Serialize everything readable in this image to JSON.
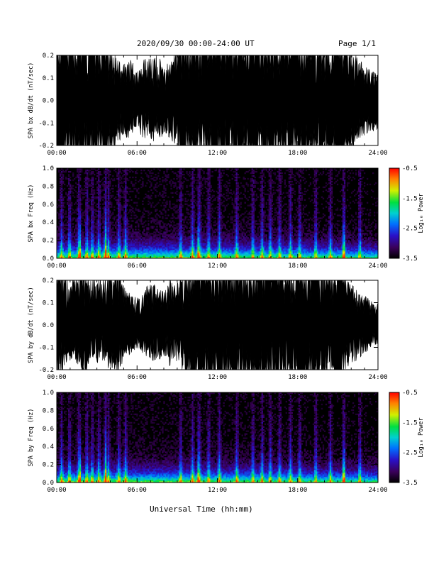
{
  "header": {
    "title": "2020/09/30  00:00-24:00 UT",
    "page": "Page 1/1"
  },
  "xaxis": {
    "label": "Universal Time (hh:mm)",
    "ticks": [
      "00:00",
      "06:00",
      "12:00",
      "18:00",
      "24:00"
    ],
    "range_hours": [
      0,
      24
    ]
  },
  "chart_data": [
    {
      "type": "area",
      "id": "bx-wave",
      "ylabel": "SPA bx dB/dt (nT/sec)",
      "ylim": [
        -0.2,
        0.2
      ],
      "yticks": [
        "-0.2",
        "-0.1",
        "0.0",
        "0.1",
        "0.2"
      ],
      "x_hours": [
        0,
        0.5,
        1,
        1.5,
        2,
        2.5,
        3,
        3.5,
        4,
        4.5,
        5,
        5.5,
        6,
        6.5,
        7,
        7.5,
        8,
        8.5,
        9,
        9.5,
        10,
        10.5,
        11,
        11.5,
        12,
        12.5,
        13,
        13.5,
        14,
        14.5,
        15,
        15.5,
        16,
        16.5,
        17,
        17.5,
        18,
        18.5,
        19,
        19.5,
        20,
        20.5,
        21,
        21.5,
        22,
        22.5,
        23,
        23.5,
        24
      ],
      "upper": [
        0.2,
        0.2,
        0.17,
        0.2,
        0.2,
        0.2,
        0.2,
        0.2,
        0.17,
        0.12,
        0.1,
        0.12,
        0.08,
        0.12,
        0.12,
        0.13,
        0.1,
        0.11,
        0.16,
        0.2,
        0.2,
        0.2,
        0.2,
        0.2,
        0.2,
        0.2,
        0.2,
        0.2,
        0.2,
        0.2,
        0.2,
        0.2,
        0.2,
        0.2,
        0.2,
        0.2,
        0.2,
        0.2,
        0.2,
        0.17,
        0.18,
        0.17,
        0.2,
        0.18,
        0.14,
        0.12,
        0.1,
        0.08,
        0.08
      ],
      "lower": [
        -0.2,
        -0.2,
        -0.17,
        -0.2,
        -0.2,
        -0.2,
        -0.2,
        -0.2,
        -0.16,
        -0.12,
        -0.1,
        -0.11,
        -0.07,
        -0.12,
        -0.12,
        -0.11,
        -0.1,
        -0.11,
        -0.16,
        -0.2,
        -0.2,
        -0.2,
        -0.2,
        -0.2,
        -0.2,
        -0.2,
        -0.2,
        -0.2,
        -0.2,
        -0.2,
        -0.2,
        -0.2,
        -0.2,
        -0.2,
        -0.2,
        -0.2,
        -0.2,
        -0.2,
        -0.2,
        -0.17,
        -0.18,
        -0.16,
        -0.19,
        -0.17,
        -0.14,
        -0.12,
        -0.1,
        -0.09,
        -0.08
      ]
    },
    {
      "type": "heatmap",
      "id": "bx-spectrogram",
      "ylabel": "SPA bx Freq (Hz)",
      "ylim": [
        0,
        1.0
      ],
      "yticks": [
        "0.0",
        "0.2",
        "0.4",
        "0.6",
        "0.8",
        "1.0"
      ],
      "colorbar": {
        "label": "Log₁₀ Power",
        "range": [
          -3.5,
          -0.5
        ],
        "ticks": [
          "-0.5",
          "-1.5",
          "-2.5",
          "-3.5"
        ]
      },
      "burst_hours": [
        0.3,
        0.9,
        1.6,
        2.2,
        2.6,
        3.1,
        3.6,
        3.8,
        4.6,
        5.1,
        9.2,
        10.1,
        10.6,
        11.3,
        12.1,
        13.4,
        14.6,
        15.3,
        15.9,
        16.6,
        17.4,
        18.1,
        19.3,
        20.4,
        21.4,
        22.6
      ],
      "hot_hours": [
        1.7,
        3.6,
        10.5,
        21.4
      ]
    },
    {
      "type": "area",
      "id": "by-wave",
      "ylabel": "SPA by dB/dt (nT/sec)",
      "ylim": [
        -0.2,
        0.2
      ],
      "yticks": [
        "-0.2",
        "-0.1",
        "0.0",
        "0.1",
        "0.2"
      ],
      "x_hours": [
        0,
        0.5,
        1,
        1.5,
        2,
        2.5,
        3,
        3.5,
        4,
        4.5,
        5,
        5.5,
        6,
        6.5,
        7,
        7.5,
        8,
        8.5,
        9,
        9.5,
        10,
        10.5,
        11,
        11.5,
        12,
        12.5,
        13,
        13.5,
        14,
        14.5,
        15,
        15.5,
        16,
        16.5,
        17,
        17.5,
        18,
        18.5,
        19,
        19.5,
        20,
        20.5,
        21,
        21.5,
        22,
        22.5,
        23,
        23.5,
        24
      ],
      "upper": [
        0.2,
        0.17,
        0.12,
        0.15,
        0.2,
        0.13,
        0.15,
        0.13,
        0.16,
        0.18,
        0.12,
        0.09,
        0.08,
        0.1,
        0.12,
        0.11,
        0.1,
        0.13,
        0.12,
        0.15,
        0.2,
        0.2,
        0.2,
        0.2,
        0.2,
        0.2,
        0.2,
        0.2,
        0.2,
        0.2,
        0.2,
        0.2,
        0.2,
        0.2,
        0.2,
        0.18,
        0.2,
        0.2,
        0.18,
        0.2,
        0.2,
        0.17,
        0.2,
        0.15,
        0.12,
        0.1,
        0.09,
        0.07,
        0.06
      ],
      "lower": [
        -0.2,
        -0.12,
        -0.1,
        -0.12,
        -0.17,
        -0.1,
        -0.12,
        -0.1,
        -0.13,
        -0.15,
        -0.1,
        -0.08,
        -0.07,
        -0.08,
        -0.1,
        -0.1,
        -0.09,
        -0.12,
        -0.11,
        -0.14,
        -0.2,
        -0.2,
        -0.2,
        -0.2,
        -0.2,
        -0.2,
        -0.2,
        -0.2,
        -0.2,
        -0.2,
        -0.2,
        -0.2,
        -0.18,
        -0.2,
        -0.17,
        -0.15,
        -0.18,
        -0.2,
        -0.17,
        -0.2,
        -0.19,
        -0.15,
        -0.2,
        -0.13,
        -0.11,
        -0.1,
        -0.08,
        -0.07,
        -0.06
      ]
    },
    {
      "type": "heatmap",
      "id": "by-spectrogram",
      "ylabel": "SPA by Freq (Hz)",
      "ylim": [
        0,
        1.0
      ],
      "yticks": [
        "0.0",
        "0.2",
        "0.4",
        "0.6",
        "0.8",
        "1.0"
      ],
      "colorbar": {
        "label": "Log₁₀ Power",
        "range": [
          -3.5,
          -0.5
        ],
        "ticks": [
          "-0.5",
          "-1.5",
          "-2.5",
          "-3.5"
        ]
      },
      "burst_hours": [
        0.3,
        0.9,
        1.6,
        2.2,
        2.6,
        3.1,
        3.6,
        3.8,
        4.6,
        5.1,
        9.2,
        10.1,
        10.6,
        11.3,
        12.1,
        13.4,
        14.6,
        15.3,
        15.9,
        16.6,
        17.4,
        18.1,
        19.3,
        20.4,
        21.4,
        22.6
      ],
      "hot_hours": [
        1.7,
        3.6,
        10.5,
        21.4
      ]
    }
  ]
}
